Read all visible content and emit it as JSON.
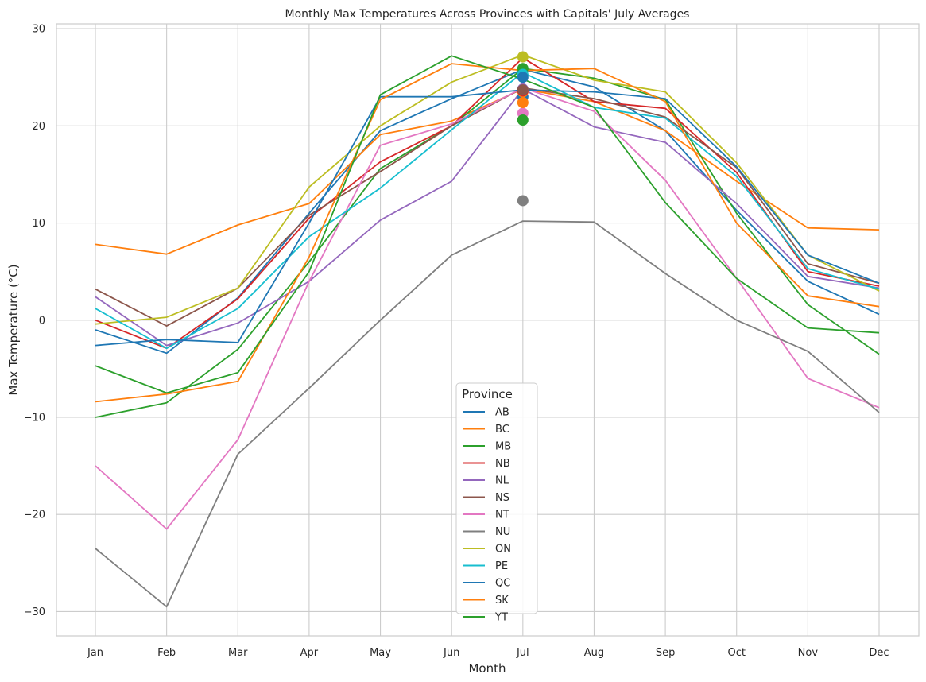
{
  "chart_data": {
    "type": "line",
    "title": "Monthly Max Temperatures Across Provinces with Capitals' July Averages",
    "xlabel": "Month",
    "ylabel": "Max Temperature (°C)",
    "ylim": [
      -32.5,
      30.5
    ],
    "yticks": [
      -30,
      -20,
      -10,
      0,
      10,
      20,
      30
    ],
    "ytick_labels": [
      "−30",
      "−20",
      "−10",
      "0",
      "10",
      "20",
      "30"
    ],
    "grid": true,
    "legend": {
      "title": "Province",
      "placement": "lower-center"
    },
    "categories": [
      "Jan",
      "Feb",
      "Mar",
      "Apr",
      "May",
      "Jun",
      "Jul",
      "Aug",
      "Sep",
      "Oct",
      "Nov",
      "Dec"
    ],
    "series": [
      {
        "name": "AB",
        "color": "#1f77b4",
        "values": [
          -1.0,
          -3.4,
          2.3,
          11.0,
          19.5,
          22.8,
          25.8,
          24.0,
          19.5,
          11.3,
          4.0,
          0.6
        ]
      },
      {
        "name": "BC",
        "color": "#ff7f0e",
        "values": [
          7.8,
          6.8,
          9.8,
          12.0,
          19.1,
          20.5,
          23.8,
          22.5,
          19.5,
          14.3,
          9.5,
          9.3
        ]
      },
      {
        "name": "MB",
        "color": "#2ca02c",
        "values": [
          -10.0,
          -8.5,
          -3.0,
          6.0,
          15.6,
          20.0,
          25.9,
          24.9,
          22.7,
          11.0,
          1.6,
          -3.5
        ]
      },
      {
        "name": "NB",
        "color": "#d62728",
        "values": [
          0.0,
          -2.9,
          2.2,
          10.5,
          16.3,
          20.0,
          27.0,
          22.5,
          21.8,
          15.2,
          5.0,
          3.5
        ]
      },
      {
        "name": "NL",
        "color": "#9467bd",
        "values": [
          2.4,
          -2.6,
          -0.3,
          4.0,
          10.3,
          14.3,
          23.8,
          19.9,
          18.3,
          12.0,
          4.5,
          3.3
        ]
      },
      {
        "name": "NS",
        "color": "#8c564b",
        "values": [
          3.2,
          -0.6,
          3.3,
          10.8,
          15.3,
          20.0,
          23.9,
          22.8,
          20.9,
          15.7,
          5.8,
          3.8
        ]
      },
      {
        "name": "NT",
        "color": "#e377c2",
        "values": [
          -15.0,
          -21.5,
          -12.3,
          4.0,
          18.0,
          20.2,
          23.9,
          21.5,
          14.4,
          4.3,
          -6.0,
          -9.0
        ]
      },
      {
        "name": "NU",
        "color": "#7f7f7f",
        "values": [
          -23.5,
          -29.5,
          -13.8,
          -7.0,
          0.0,
          6.7,
          10.2,
          10.1,
          4.8,
          0.0,
          -3.2,
          -9.5
        ]
      },
      {
        "name": "ON",
        "color": "#bcbd22",
        "values": [
          -0.4,
          0.3,
          3.3,
          13.7,
          20.0,
          24.5,
          27.3,
          24.7,
          23.5,
          16.2,
          6.7,
          3.0
        ]
      },
      {
        "name": "PE",
        "color": "#17becf",
        "values": [
          1.2,
          -2.9,
          1.2,
          8.6,
          13.6,
          19.6,
          25.5,
          21.9,
          20.8,
          14.8,
          5.3,
          3.2
        ]
      },
      {
        "name": "QC",
        "color": "#1f77b4",
        "values": [
          -2.6,
          -2.0,
          -2.3,
          10.0,
          23.0,
          23.0,
          23.7,
          23.5,
          22.8,
          15.8,
          6.7,
          3.8
        ]
      },
      {
        "name": "SK",
        "color": "#ff7f0e",
        "values": [
          -8.4,
          -7.6,
          -6.3,
          6.5,
          22.7,
          26.4,
          25.7,
          25.9,
          22.5,
          10.0,
          2.5,
          1.4
        ]
      },
      {
        "name": "YT",
        "color": "#2ca02c",
        "values": [
          -4.7,
          -7.5,
          -5.4,
          5.0,
          23.2,
          27.2,
          24.8,
          21.9,
          12.1,
          4.3,
          -0.8,
          -1.3
        ]
      }
    ],
    "july_capital_points": [
      {
        "name": "AB",
        "color": "#1f77b4",
        "value": 23.0
      },
      {
        "name": "BC",
        "color": "#ff7f0e",
        "value": 23.5
      },
      {
        "name": "MB",
        "color": "#2ca02c",
        "value": 25.9
      },
      {
        "name": "NB",
        "color": "#d62728",
        "value": 23.6
      },
      {
        "name": "NL",
        "color": "#9467bd",
        "value": 23.8
      },
      {
        "name": "NS",
        "color": "#8c564b",
        "value": 23.7
      },
      {
        "name": "NT",
        "color": "#e377c2",
        "value": 21.3
      },
      {
        "name": "NU",
        "color": "#7f7f7f",
        "value": 12.3
      },
      {
        "name": "ON",
        "color": "#bcbd22",
        "value": 27.1
      },
      {
        "name": "PE",
        "color": "#17becf",
        "value": 25.3
      },
      {
        "name": "QC",
        "color": "#1f77b4",
        "value": 25.0
      },
      {
        "name": "SK",
        "color": "#ff7f0e",
        "value": 22.4
      },
      {
        "name": "YT",
        "color": "#2ca02c",
        "value": 20.6
      }
    ]
  }
}
